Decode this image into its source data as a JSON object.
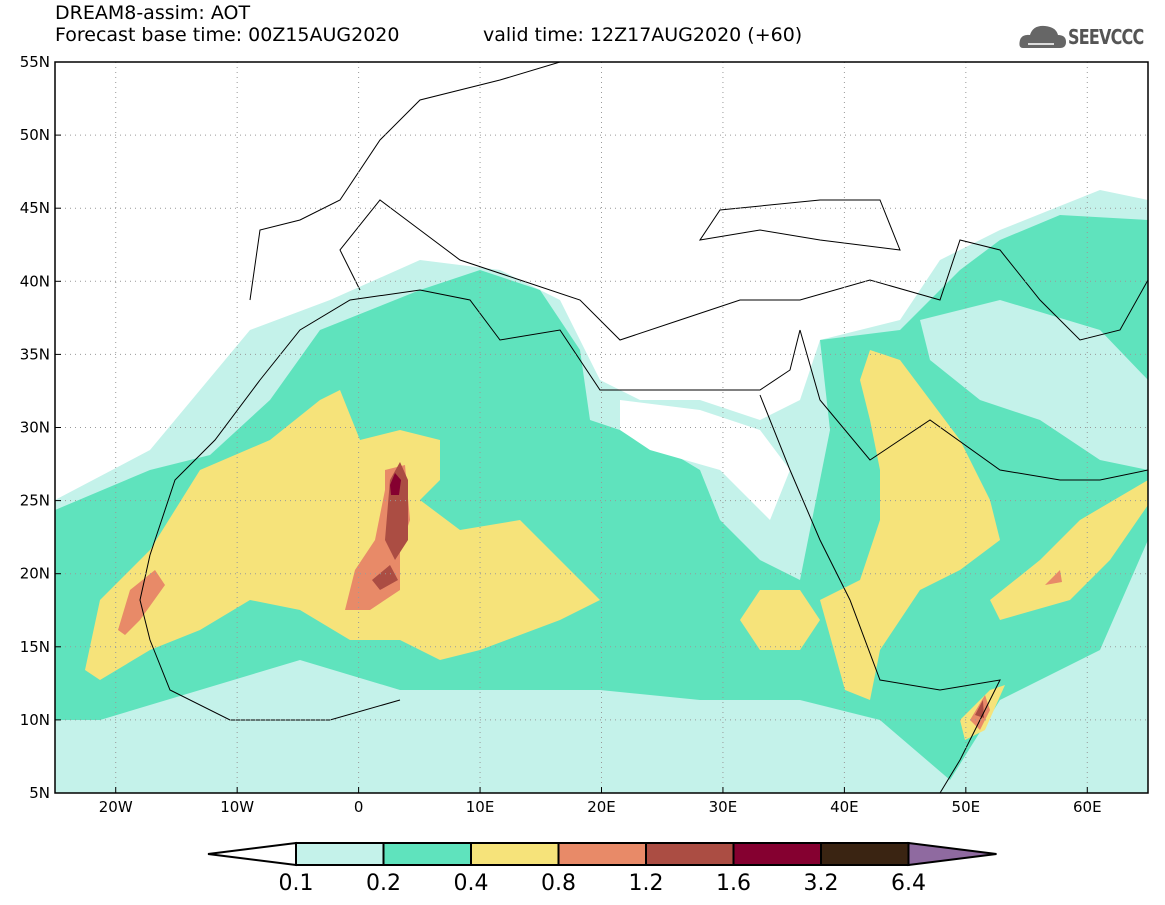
{
  "header": {
    "title": "DREAM8-assim: AOT",
    "base_time": "Forecast base time: 00Z15AUG2020",
    "valid_time": "valid time: 12Z17AUG2020 (+60)"
  },
  "logo": {
    "text": "SEEVCCC"
  },
  "axes": {
    "lat_labels": [
      "55N",
      "50N",
      "45N",
      "40N",
      "35N",
      "30N",
      "25N",
      "20N",
      "15N",
      "10N",
      "5N"
    ],
    "lat_values": [
      55,
      50,
      45,
      40,
      35,
      30,
      25,
      20,
      15,
      10,
      5
    ],
    "lon_labels": [
      "20W",
      "10W",
      "0",
      "10E",
      "20E",
      "30E",
      "40E",
      "50E",
      "60E"
    ],
    "lon_values": [
      -20,
      -10,
      0,
      10,
      20,
      30,
      40,
      50,
      60
    ],
    "lon_range": [
      -25,
      65
    ],
    "lat_range": [
      5,
      55
    ]
  },
  "colorbar": {
    "labels": [
      "0.1",
      "0.2",
      "0.4",
      "0.8",
      "1.2",
      "1.6",
      "3.2",
      "6.4"
    ],
    "colors": [
      "#c4f2ea",
      "#5fe3bd",
      "#f6e37a",
      "#e88a68",
      "#ab4d43",
      "#850030",
      "#3a2412",
      "#8f6aa0"
    ]
  }
}
